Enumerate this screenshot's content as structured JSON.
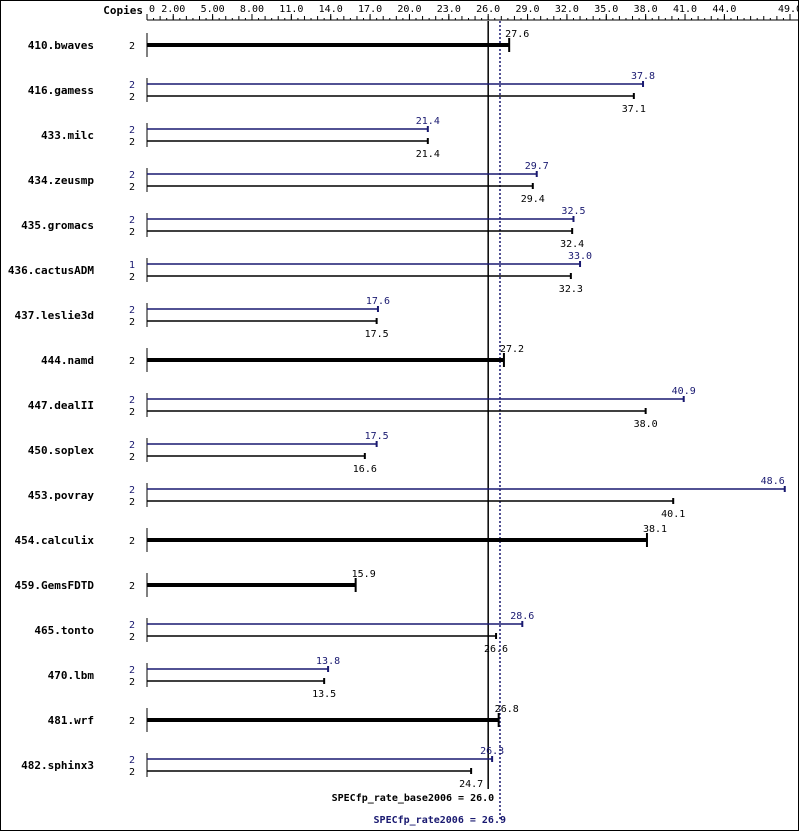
{
  "chart_data": {
    "type": "bar",
    "orientation": "horizontal",
    "axis": {
      "header": "Copies",
      "min": 0,
      "max": 49.0,
      "ticks": [
        "0",
        "2.00",
        "5.00",
        "8.00",
        "11.0",
        "14.0",
        "17.0",
        "20.0",
        "23.0",
        "26.0",
        "29.0",
        "32.0",
        "35.0",
        "38.0",
        "41.0",
        "44.0",
        "49.0"
      ]
    },
    "series": [
      {
        "name": "SPECfp_rate_base2006",
        "color": "#000000"
      },
      {
        "name": "SPECfp_rate2006",
        "color": "#191970"
      }
    ],
    "benchmarks": [
      {
        "name": "410.bwaves",
        "combined": true,
        "base_copies": "2",
        "base_value": 27.6,
        "base_label": "27.6"
      },
      {
        "name": "416.gamess",
        "combined": false,
        "peak_copies": "2",
        "peak_value": 37.8,
        "peak_label": "37.8",
        "base_copies": "2",
        "base_value": 37.1,
        "base_label": "37.1"
      },
      {
        "name": "433.milc",
        "combined": false,
        "peak_copies": "2",
        "peak_value": 21.4,
        "peak_label": "21.4",
        "base_copies": "2",
        "base_value": 21.4,
        "base_label": "21.4"
      },
      {
        "name": "434.zeusmp",
        "combined": false,
        "peak_copies": "2",
        "peak_value": 29.7,
        "peak_label": "29.7",
        "base_copies": "2",
        "base_value": 29.4,
        "base_label": "29.4"
      },
      {
        "name": "435.gromacs",
        "combined": false,
        "peak_copies": "2",
        "peak_value": 32.5,
        "peak_label": "32.5",
        "base_copies": "2",
        "base_value": 32.4,
        "base_label": "32.4"
      },
      {
        "name": "436.cactusADM",
        "combined": false,
        "peak_copies": "1",
        "peak_value": 33.0,
        "peak_label": "33.0",
        "base_copies": "2",
        "base_value": 32.3,
        "base_label": "32.3"
      },
      {
        "name": "437.leslie3d",
        "combined": false,
        "peak_copies": "2",
        "peak_value": 17.6,
        "peak_label": "17.6",
        "base_copies": "2",
        "base_value": 17.5,
        "base_label": "17.5"
      },
      {
        "name": "444.namd",
        "combined": true,
        "base_copies": "2",
        "base_value": 27.2,
        "base_label": "27.2"
      },
      {
        "name": "447.dealII",
        "combined": false,
        "peak_copies": "2",
        "peak_value": 40.9,
        "peak_label": "40.9",
        "base_copies": "2",
        "base_value": 38.0,
        "base_label": "38.0"
      },
      {
        "name": "450.soplex",
        "combined": false,
        "peak_copies": "2",
        "peak_value": 17.5,
        "peak_label": "17.5",
        "base_copies": "2",
        "base_value": 16.6,
        "base_label": "16.6"
      },
      {
        "name": "453.povray",
        "combined": false,
        "peak_copies": "2",
        "peak_value": 48.6,
        "peak_label": "48.6",
        "base_copies": "2",
        "base_value": 40.1,
        "base_label": "40.1"
      },
      {
        "name": "454.calculix",
        "combined": true,
        "base_copies": "2",
        "base_value": 38.1,
        "base_label": "38.1"
      },
      {
        "name": "459.GemsFDTD",
        "combined": true,
        "base_copies": "2",
        "base_value": 15.9,
        "base_label": "15.9"
      },
      {
        "name": "465.tonto",
        "combined": false,
        "peak_copies": "2",
        "peak_value": 28.6,
        "peak_label": "28.6",
        "base_copies": "2",
        "base_value": 26.6,
        "base_label": "26.6"
      },
      {
        "name": "470.lbm",
        "combined": false,
        "peak_copies": "2",
        "peak_value": 13.8,
        "peak_label": "13.8",
        "base_copies": "2",
        "base_value": 13.5,
        "base_label": "13.5"
      },
      {
        "name": "481.wrf",
        "combined": true,
        "base_copies": "2",
        "base_value": 26.8,
        "base_label": "26.8"
      },
      {
        "name": "482.sphinx3",
        "combined": false,
        "peak_copies": "2",
        "peak_value": 26.3,
        "peak_label": "26.3",
        "base_copies": "2",
        "base_value": 24.7,
        "base_label": "24.7"
      }
    ],
    "reference_lines": [
      {
        "label": "SPECfp_rate_base2006 = 26.0",
        "value": 26.0,
        "style": "solid",
        "color": "#000000"
      },
      {
        "label": "SPECfp_rate2006 = 26.9",
        "value": 26.9,
        "style": "dotted",
        "color": "#191970"
      }
    ]
  }
}
